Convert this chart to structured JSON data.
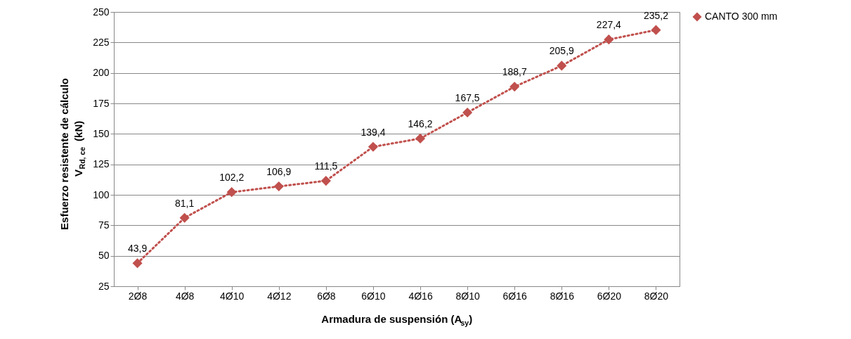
{
  "chart_data": {
    "type": "line",
    "xlabel": "Armadura de suspensión (A$_{sy}$)",
    "ylabel": "Esfuerzo resistente de cálculo\nV$_{Rd, ce}$  (kN)",
    "categories": [
      "2Ø8",
      "4Ø8",
      "4Ø10",
      "4Ø12",
      "6Ø8",
      "6Ø10",
      "4Ø16",
      "8Ø10",
      "6Ø16",
      "8Ø16",
      "6Ø20",
      "8Ø20"
    ],
    "series": [
      {
        "name": "CANTO 300 mm",
        "color": "#c0504d",
        "values": [
          43.9,
          81.1,
          102.2,
          106.9,
          111.5,
          139.4,
          146.2,
          167.5,
          188.7,
          205.9,
          227.4,
          235.2
        ],
        "value_labels": [
          "43,9",
          "81,1",
          "102,2",
          "106,9",
          "111,5",
          "139,4",
          "146,2",
          "167,5",
          "188,7",
          "205,9",
          "227,4",
          "235,2"
        ]
      }
    ],
    "ylim": [
      25,
      250
    ],
    "yticks": [
      25,
      50,
      75,
      100,
      125,
      150,
      175,
      200,
      225,
      250
    ],
    "grid": "y",
    "legend": "right",
    "marker": "diamond",
    "line_style": "dotted"
  }
}
